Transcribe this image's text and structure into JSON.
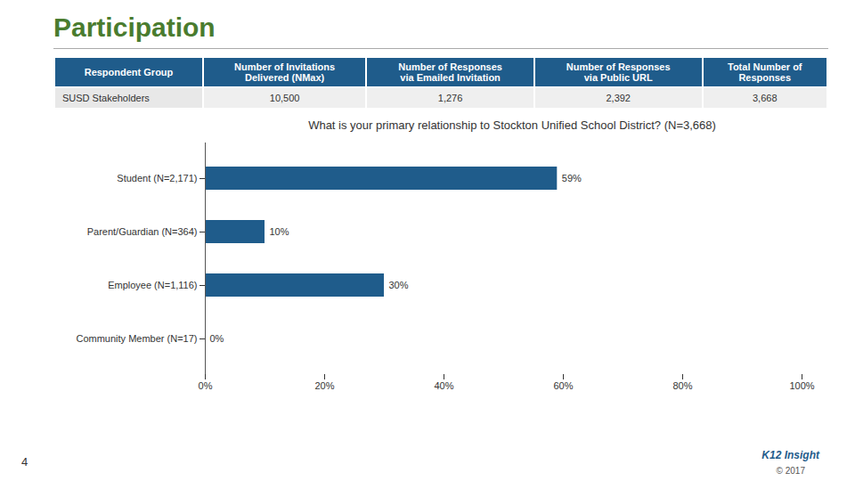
{
  "chart_data": {
    "type": "bar",
    "title": "Participation",
    "subtitle": "What is your primary relationship to Stockton Unified School District? (N=3,668)",
    "table": {
      "columns": [
        "Respondent Group",
        "Number of Invitations\nDelivered (NMax)",
        "Number of Responses\nvia Emailed Invitation",
        "Number of Responses\nvia Public URL",
        "Total Number of\nResponses"
      ],
      "rows": [
        [
          "SUSD Stakeholders",
          "10,500",
          "1,276",
          "2,392",
          "3,668"
        ]
      ]
    },
    "annotations": [
      "4",
      "K12 Insight",
      "© 2017"
    ],
    "categories": [
      "Community Member (N=17)",
      "Employee (N=1,116)",
      "Parent/Guardian (N=364)",
      "Student (N=2,171)"
    ],
    "values": [
      0,
      30,
      10,
      59
    ],
    "value_labels": [
      "0%",
      "30%",
      "10%",
      "59%"
    ],
    "color": "#1f5c8b",
    "orientation": "horizontal",
    "data_labels": true,
    "xlim": [
      0,
      100
    ],
    "xticks": [
      {
        "value": 0,
        "label": "0%"
      },
      {
        "value": 20,
        "label": "20%"
      },
      {
        "value": 40,
        "label": "40%"
      },
      {
        "value": 60,
        "label": "60%"
      },
      {
        "value": 80,
        "label": "80%"
      },
      {
        "value": 100,
        "label": "100%"
      }
    ],
    "grid": false
  }
}
